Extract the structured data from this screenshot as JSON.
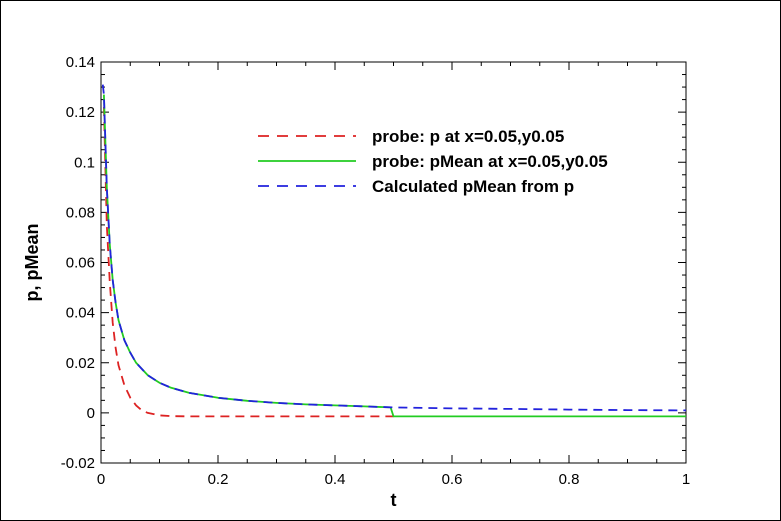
{
  "chart_data": {
    "type": "line",
    "title": "",
    "xlabel": "t",
    "ylabel": "p, pMean",
    "xlim": [
      0,
      1
    ],
    "ylim": [
      -0.02,
      0.14
    ],
    "xticks": [
      0,
      0.2,
      0.4,
      0.6,
      0.8,
      1
    ],
    "yticks": [
      -0.02,
      0,
      0.02,
      0.04,
      0.06,
      0.08,
      0.1,
      0.12,
      0.14
    ],
    "xtick_labels": [
      "0",
      "0.2",
      "0.4",
      "0.6",
      "0.8",
      "1"
    ],
    "ytick_labels": [
      "-0.02",
      "0",
      "0.02",
      "0.04",
      "0.06",
      "0.08",
      "0.1",
      "0.12",
      "0.14"
    ],
    "grid": false,
    "legend_position": "top-right",
    "series": [
      {
        "name": "probe: p at x=0.05,y0.05",
        "color": "#dd2222",
        "style": "dashed",
        "x": [
          0.005,
          0.01,
          0.015,
          0.02,
          0.025,
          0.03,
          0.04,
          0.05,
          0.06,
          0.07,
          0.08,
          0.09,
          0.1,
          0.12,
          0.15,
          0.2,
          0.3,
          0.4,
          0.5
        ],
        "y": [
          0.122,
          0.075,
          0.052,
          0.036,
          0.026,
          0.019,
          0.011,
          0.006,
          0.003,
          0.001,
          0.0,
          -0.0005,
          -0.001,
          -0.0013,
          -0.0014,
          -0.0014,
          -0.0014,
          -0.0014,
          -0.0014
        ]
      },
      {
        "name": "probe: pMean at x=0.05,y0.05",
        "color": "#22cc22",
        "style": "solid",
        "x": [
          0.005,
          0.01,
          0.015,
          0.02,
          0.025,
          0.03,
          0.04,
          0.05,
          0.06,
          0.08,
          0.1,
          0.12,
          0.15,
          0.2,
          0.25,
          0.3,
          0.35,
          0.4,
          0.45,
          0.495,
          0.5,
          0.6,
          0.7,
          0.8,
          0.9,
          1.0
        ],
        "y": [
          0.127,
          0.09,
          0.067,
          0.053,
          0.044,
          0.037,
          0.029,
          0.024,
          0.02,
          0.015,
          0.012,
          0.01,
          0.008,
          0.006,
          0.0048,
          0.004,
          0.0034,
          0.003,
          0.0026,
          0.0022,
          -0.0014,
          -0.0014,
          -0.0014,
          -0.0014,
          -0.0014,
          -0.0014
        ]
      },
      {
        "name": "Calculated pMean from p",
        "color": "#2222dd",
        "style": "dashed",
        "x": [
          0.003,
          0.005,
          0.01,
          0.015,
          0.02,
          0.025,
          0.03,
          0.04,
          0.05,
          0.06,
          0.08,
          0.1,
          0.12,
          0.15,
          0.2,
          0.25,
          0.3,
          0.35,
          0.4,
          0.45,
          0.5,
          0.6,
          0.7,
          0.8,
          0.9,
          1.0
        ],
        "y": [
          0.131,
          0.127,
          0.09,
          0.067,
          0.053,
          0.044,
          0.037,
          0.029,
          0.024,
          0.02,
          0.015,
          0.012,
          0.01,
          0.008,
          0.006,
          0.0048,
          0.004,
          0.0034,
          0.003,
          0.0026,
          0.0022,
          0.0018,
          0.0016,
          0.0013,
          0.0011,
          0.001
        ]
      }
    ]
  }
}
